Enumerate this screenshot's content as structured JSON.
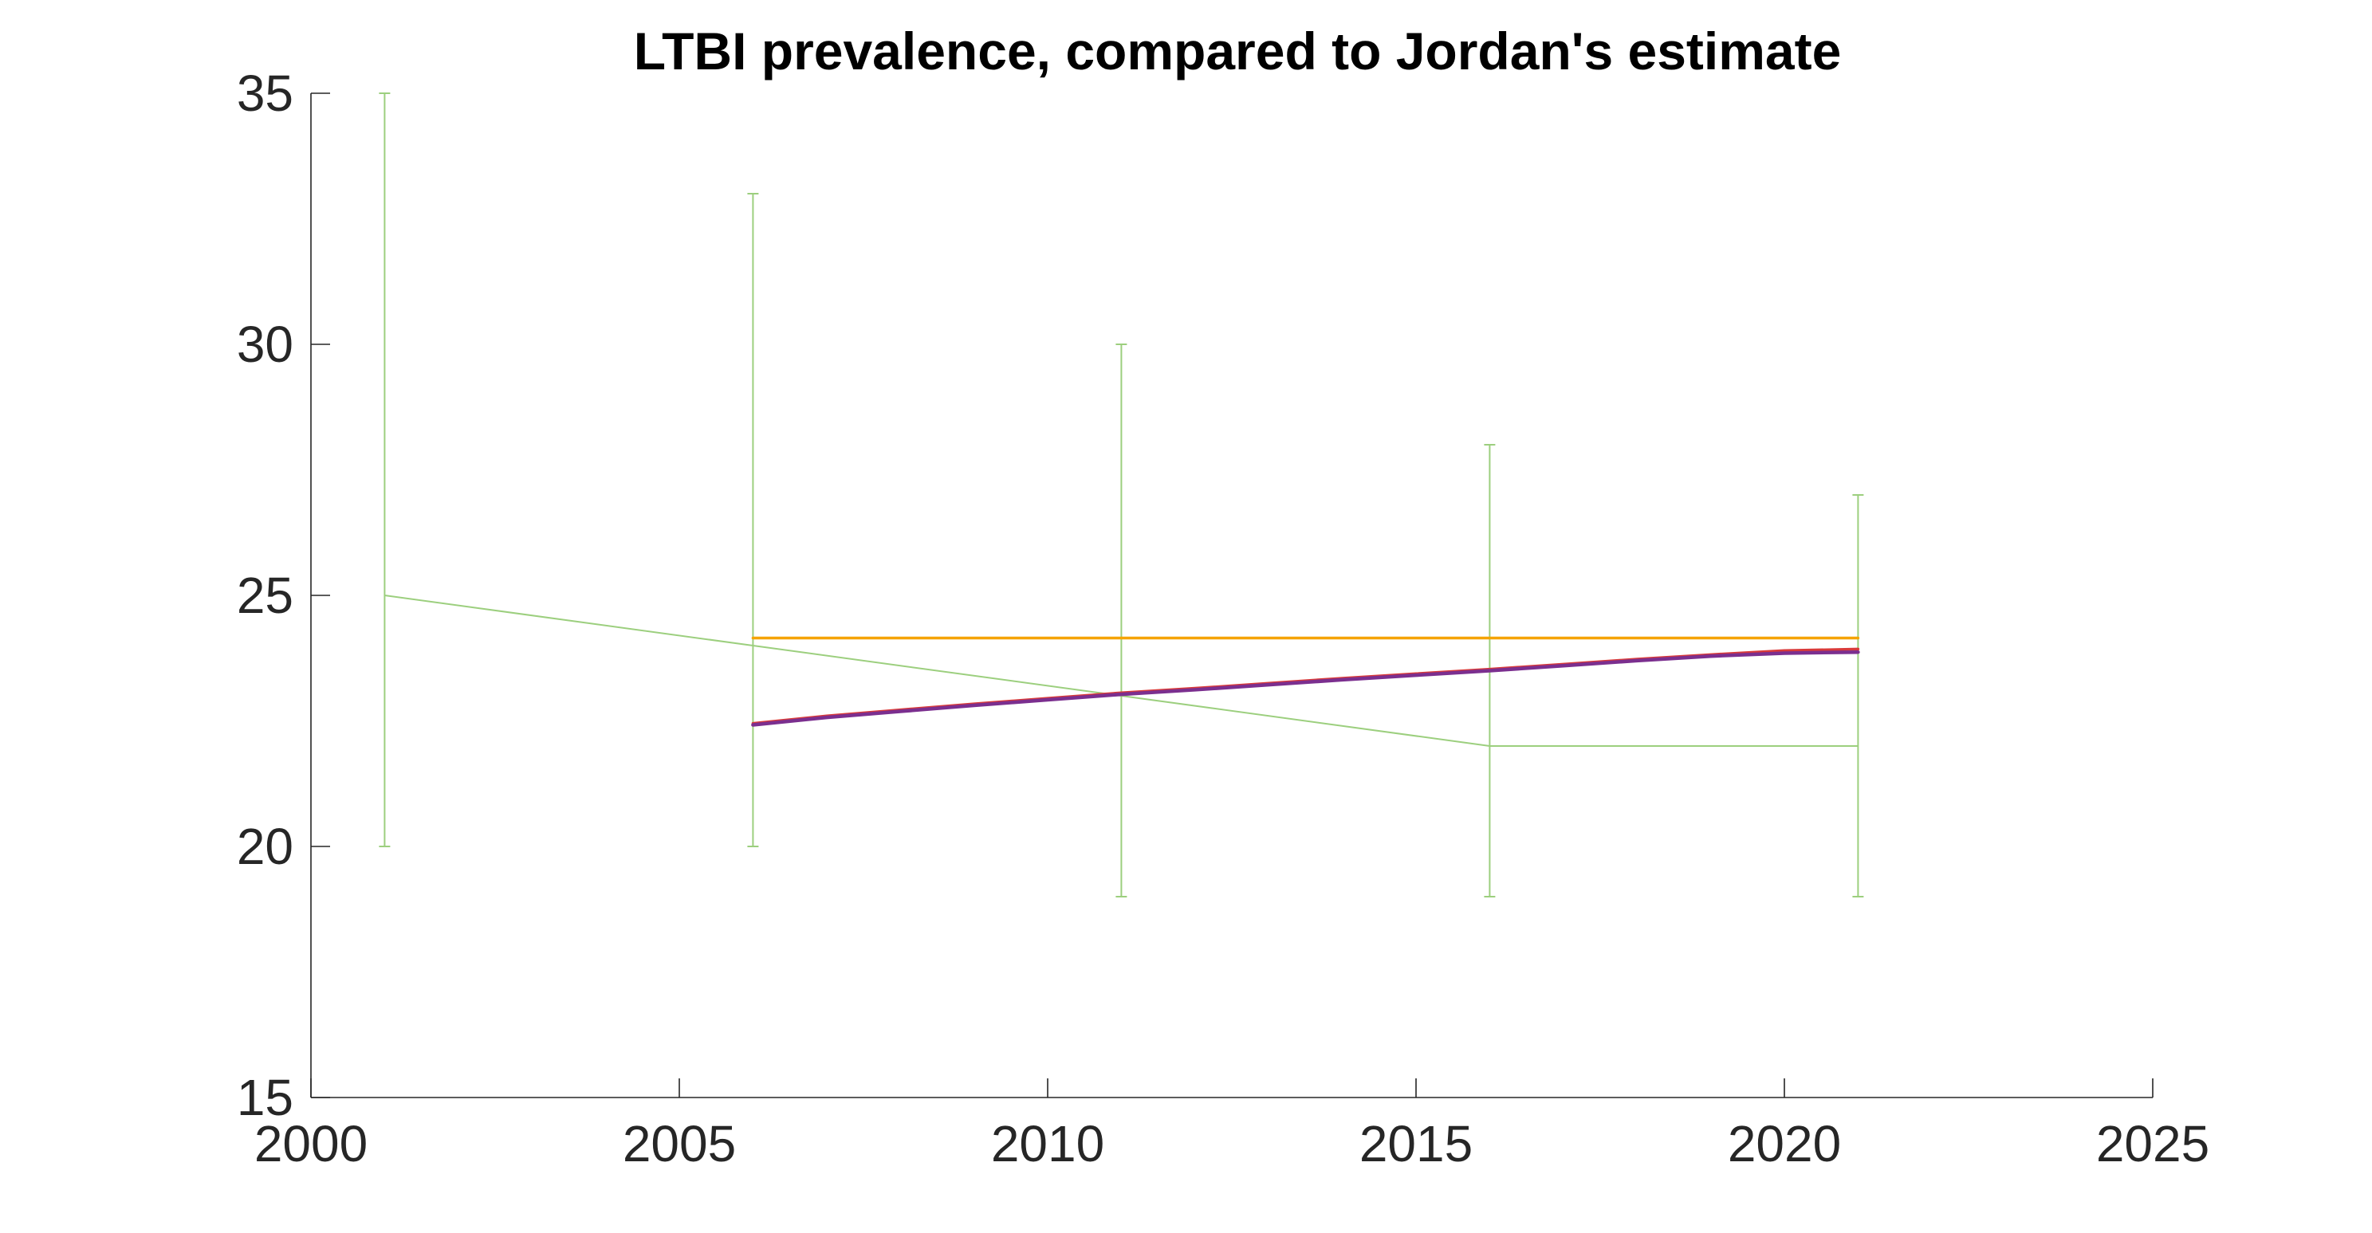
{
  "chart_data": {
    "type": "line",
    "title": "LTBI prevalence, compared to Jordan's estimate",
    "xlabel": "",
    "ylabel": "",
    "xlim": [
      2000,
      2025
    ],
    "ylim": [
      15,
      35
    ],
    "xticks": [
      "2000",
      "2005",
      "2010",
      "2015",
      "2020",
      "2025"
    ],
    "yticks": [
      "15",
      "20",
      "25",
      "30",
      "35"
    ],
    "grid": false,
    "legend": "none",
    "series": [
      {
        "kind": "errorbar-line",
        "color": "#9ccf7e",
        "x": [
          2001,
          2006,
          2011,
          2016,
          2021
        ],
        "y": [
          25,
          24,
          23,
          22,
          22
        ],
        "lower": [
          20,
          20,
          19,
          19,
          19
        ],
        "upper": [
          35,
          33,
          30,
          28,
          27
        ]
      },
      {
        "kind": "line",
        "color": "#f5a300",
        "x": [
          2006,
          2021
        ],
        "y": [
          24.15,
          24.15
        ]
      },
      {
        "kind": "line",
        "color": "#d93a3a",
        "x": [
          2006,
          2007,
          2008,
          2009,
          2010,
          2011,
          2012,
          2013,
          2014,
          2015,
          2016,
          2017,
          2018,
          2019,
          2020,
          2021
        ],
        "y": [
          22.45,
          22.6,
          22.72,
          22.84,
          22.95,
          23.06,
          23.15,
          23.25,
          23.35,
          23.44,
          23.53,
          23.63,
          23.73,
          23.82,
          23.9,
          23.93
        ]
      },
      {
        "kind": "line",
        "color": "#7b2f8f",
        "x": [
          2006,
          2007,
          2008,
          2009,
          2010,
          2011,
          2012,
          2013,
          2014,
          2015,
          2016,
          2017,
          2018,
          2019,
          2020,
          2021
        ],
        "y": [
          22.42,
          22.57,
          22.69,
          22.81,
          22.92,
          23.03,
          23.12,
          23.22,
          23.32,
          23.41,
          23.5,
          23.6,
          23.7,
          23.79,
          23.85,
          23.87
        ]
      }
    ]
  }
}
